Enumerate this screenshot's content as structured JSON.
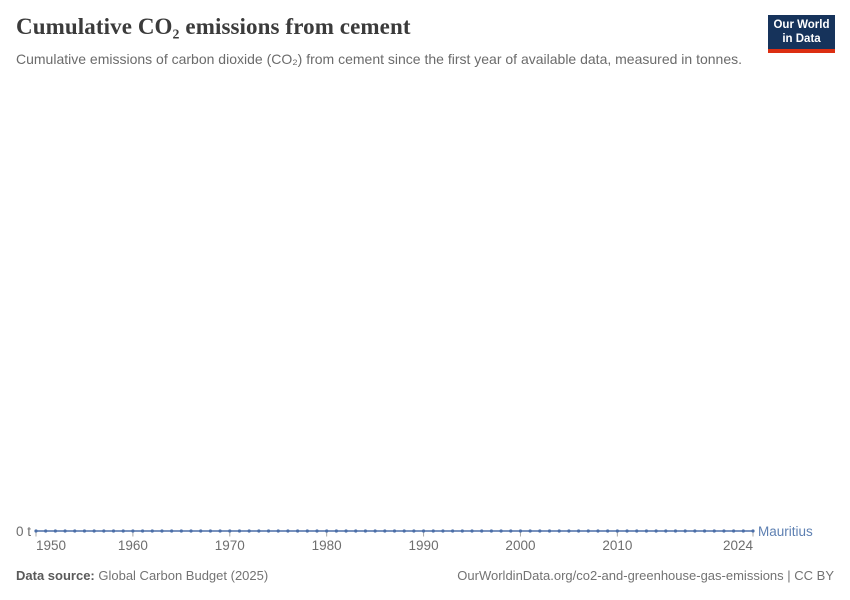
{
  "header": {
    "title": "Cumulative CO₂ emissions from cement",
    "subtitle": "Cumulative emissions of carbon dioxide (CO₂) from cement since the first year of available data, measured in tonnes."
  },
  "logo": {
    "line1": "Our World",
    "line2": "in Data",
    "bg_color": "#16335b",
    "accent_color": "#dc2e12"
  },
  "chart_data": {
    "type": "line",
    "title": "Cumulative CO₂ emissions from cement",
    "xlabel": "",
    "ylabel": "",
    "unit": "t",
    "y_zero_label": "0 t",
    "ylim": [
      0,
      0
    ],
    "xlim": [
      1950,
      2024
    ],
    "grid": false,
    "legend_position": "end-of-line",
    "x": [
      1950,
      1951,
      1952,
      1953,
      1954,
      1955,
      1956,
      1957,
      1958,
      1959,
      1960,
      1961,
      1962,
      1963,
      1964,
      1965,
      1966,
      1967,
      1968,
      1969,
      1970,
      1971,
      1972,
      1973,
      1974,
      1975,
      1976,
      1977,
      1978,
      1979,
      1980,
      1981,
      1982,
      1983,
      1984,
      1985,
      1986,
      1987,
      1988,
      1989,
      1990,
      1991,
      1992,
      1993,
      1994,
      1995,
      1996,
      1997,
      1998,
      1999,
      2000,
      2001,
      2002,
      2003,
      2004,
      2005,
      2006,
      2007,
      2008,
      2009,
      2010,
      2011,
      2012,
      2013,
      2014,
      2015,
      2016,
      2017,
      2018,
      2019,
      2020,
      2021,
      2022,
      2023,
      2024
    ],
    "series": [
      {
        "name": "Mauritius",
        "color": "#4c6fa8",
        "label_color": "#5e80b2",
        "values": [
          0,
          0,
          0,
          0,
          0,
          0,
          0,
          0,
          0,
          0,
          0,
          0,
          0,
          0,
          0,
          0,
          0,
          0,
          0,
          0,
          0,
          0,
          0,
          0,
          0,
          0,
          0,
          0,
          0,
          0,
          0,
          0,
          0,
          0,
          0,
          0,
          0,
          0,
          0,
          0,
          0,
          0,
          0,
          0,
          0,
          0,
          0,
          0,
          0,
          0,
          0,
          0,
          0,
          0,
          0,
          0,
          0,
          0,
          0,
          0,
          0,
          0,
          0,
          0,
          0,
          0,
          0,
          0,
          0,
          0,
          0,
          0,
          0,
          0,
          0
        ]
      }
    ],
    "x_tick_years": [
      1950,
      1960,
      1970,
      1980,
      1990,
      2000,
      2010,
      2024
    ],
    "x_tick_labels": [
      "1950",
      "1960",
      "1970",
      "1980",
      "1990",
      "2000",
      "2010",
      "2024"
    ],
    "tick_color": "#a8a8a8"
  },
  "footer": {
    "source_label": "Data source:",
    "source_value": " Global Carbon Budget (2025)",
    "right_text": "OurWorldinData.org/co2-and-greenhouse-gas-emissions | CC BY"
  }
}
